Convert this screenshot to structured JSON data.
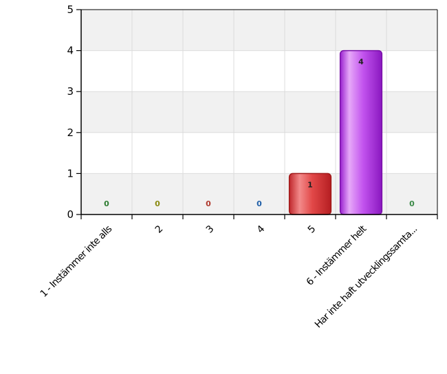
{
  "chart_data": {
    "type": "bar",
    "categories": [
      "1 - Instämmer inte alls",
      "2",
      "3",
      "4",
      "5",
      "6 - Instämmer helt",
      "Har inte haft utvecklingssamta..."
    ],
    "values": [
      0,
      0,
      0,
      0,
      1,
      4,
      0
    ],
    "data_labels": [
      "0",
      "0",
      "0",
      "0",
      "1",
      "4",
      "0"
    ],
    "colors": [
      "#2e7d32",
      "#9e9d24",
      "#c62828",
      "#1565c0",
      "#d32f2f",
      "#a020d8",
      "#4caf50"
    ],
    "label_colors": [
      "#2e7d32",
      "#8a8a10",
      "#b03a2e",
      "#1f5fa8",
      "#222222",
      "#222222",
      "#3b8a48"
    ],
    "title": "",
    "xlabel": "",
    "ylabel": "",
    "ylim": [
      0,
      5
    ],
    "yticks": [
      "0",
      "1",
      "2",
      "3",
      "4",
      "5"
    ],
    "grid": true,
    "legend": "none"
  }
}
